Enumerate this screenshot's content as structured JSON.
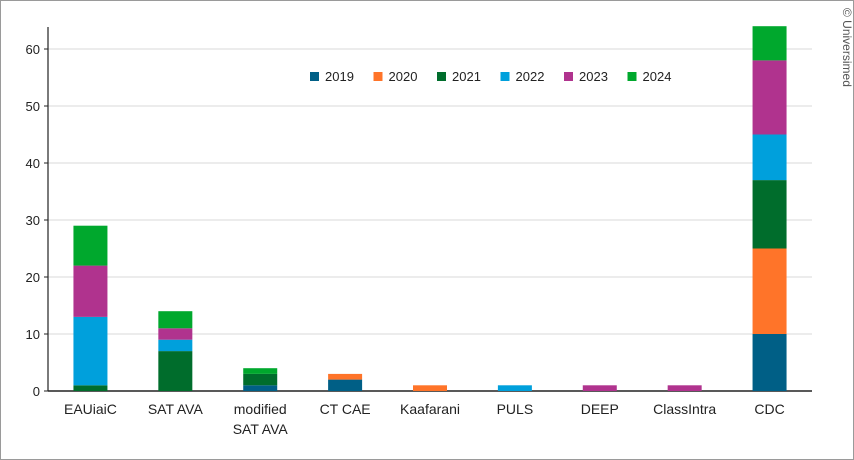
{
  "chart_data": {
    "type": "bar",
    "stacked": true,
    "title": "",
    "xlabel": "",
    "ylabel": "",
    "ylim": [
      0,
      64
    ],
    "yticks": [
      0,
      10,
      20,
      30,
      40,
      50,
      60
    ],
    "grid": true,
    "legend_placement": "top-center",
    "categories": [
      "EAUiaiC",
      "SAT AVA",
      "modified SAT AVA",
      "CT CAE",
      "Kaafarani",
      "PULS",
      "DEEP",
      "ClassIntra",
      "CDC"
    ],
    "category_lines": [
      [
        "EAUiaiC"
      ],
      [
        "SAT AVA"
      ],
      [
        "modified",
        "SAT AVA"
      ],
      [
        "CT CAE"
      ],
      [
        "Kaafarani"
      ],
      [
        "PULS"
      ],
      [
        "DEEP"
      ],
      [
        "ClassIntra"
      ],
      [
        "CDC"
      ]
    ],
    "series": [
      {
        "name": "2019",
        "color": "#005f86",
        "values": [
          0,
          0,
          1,
          2,
          0,
          0,
          0,
          0,
          10
        ]
      },
      {
        "name": "2020",
        "color": "#ff7429",
        "values": [
          0,
          0,
          0,
          1,
          1,
          0,
          0,
          0,
          15
        ]
      },
      {
        "name": "2021",
        "color": "#006d2c",
        "values": [
          1,
          7,
          2,
          0,
          0,
          0,
          0,
          0,
          12
        ]
      },
      {
        "name": "2022",
        "color": "#00a0dc",
        "values": [
          12,
          2,
          0,
          0,
          0,
          1,
          0,
          0,
          8
        ]
      },
      {
        "name": "2023",
        "color": "#b0338e",
        "values": [
          9,
          2,
          0,
          0,
          0,
          0,
          1,
          1,
          13
        ]
      },
      {
        "name": "2024",
        "color": "#00a82d",
        "values": [
          7,
          3,
          1,
          0,
          0,
          0,
          0,
          0,
          6
        ]
      }
    ]
  },
  "watermark": "© Universimed"
}
